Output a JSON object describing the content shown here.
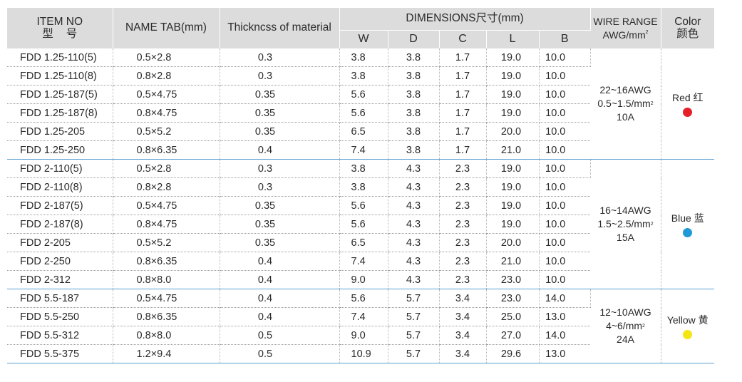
{
  "header": {
    "item_no": "ITEM NO",
    "item_no_cn": "型号",
    "name_tab": "NAME TAB(mm)",
    "thickness": "Thickncss of material",
    "dimensions": "DIMENSIONS尺寸(mm)",
    "wire_range": "WIRE RANGE",
    "wire_unit": "AWG/mm",
    "wire_unit_sup": "2",
    "color": "Color",
    "color_cn": "颜色",
    "dims": [
      "W",
      "D",
      "C",
      "L",
      "B"
    ]
  },
  "groups": [
    {
      "wire_awg": "22~16AWG",
      "wire_mm": "0.5~1.5/mm",
      "wire_mm_sup": "2",
      "wire_amp": "10A",
      "color_label": "Red 红",
      "color_hex": "#e5202a",
      "rows": [
        {
          "item": "FDD 1.25-110(5)",
          "tab": "0.5×2.8",
          "thk": "0.3",
          "w": "3.8",
          "d": "3.8",
          "c": "1.7",
          "l": "19.0",
          "b": "10.0"
        },
        {
          "item": "FDD 1.25-110(8)",
          "tab": "0.8×2.8",
          "thk": "0.3",
          "w": "3.8",
          "d": "3.8",
          "c": "1.7",
          "l": "19.0",
          "b": "10.0"
        },
        {
          "item": "FDD 1.25-187(5)",
          "tab": "0.5×4.75",
          "thk": "0.35",
          "w": "5.6",
          "d": "3.8",
          "c": "1.7",
          "l": "19.0",
          "b": "10.0"
        },
        {
          "item": "FDD 1.25-187(8)",
          "tab": "0.8×4.75",
          "thk": "0.35",
          "w": "5.6",
          "d": "3.8",
          "c": "1.7",
          "l": "19.0",
          "b": "10.0"
        },
        {
          "item": "FDD 1.25-205",
          "tab": "0.5×5.2",
          "thk": "0.35",
          "w": "6.5",
          "d": "3.8",
          "c": "1.7",
          "l": "20.0",
          "b": "10.0"
        },
        {
          "item": "FDD 1.25-250",
          "tab": "0.8×6.35",
          "thk": "0.4",
          "w": "7.4",
          "d": "3.8",
          "c": "1.7",
          "l": "21.0",
          "b": "10.0"
        }
      ]
    },
    {
      "wire_awg": "16~14AWG",
      "wire_mm": "1.5~2.5/mm",
      "wire_mm_sup": "2",
      "wire_amp": "15A",
      "color_label": "Blue 蓝",
      "color_hex": "#1f9ad6",
      "rows": [
        {
          "item": "FDD 2-110(5)",
          "tab": "0.5×2.8",
          "thk": "0.3",
          "w": "3.8",
          "d": "4.3",
          "c": "2.3",
          "l": "19.0",
          "b": "10.0"
        },
        {
          "item": "FDD 2-110(8)",
          "tab": "0.8×2.8",
          "thk": "0.3",
          "w": "3.8",
          "d": "4.3",
          "c": "2.3",
          "l": "19.0",
          "b": "10.0"
        },
        {
          "item": "FDD 2-187(5)",
          "tab": "0.5×4.75",
          "thk": "0.35",
          "w": "5.6",
          "d": "4.3",
          "c": "2.3",
          "l": "19.0",
          "b": "10.0"
        },
        {
          "item": "FDD 2-187(8)",
          "tab": "0.8×4.75",
          "thk": "0.35",
          "w": "5.6",
          "d": "4.3",
          "c": "2.3",
          "l": "19.0",
          "b": "10.0"
        },
        {
          "item": "FDD 2-205",
          "tab": "0.5×5.2",
          "thk": "0.35",
          "w": "6.5",
          "d": "4.3",
          "c": "2.3",
          "l": "20.0",
          "b": "10.0"
        },
        {
          "item": "FDD 2-250",
          "tab": "0.8×6.35",
          "thk": "0.4",
          "w": "7.4",
          "d": "4.3",
          "c": "2.3",
          "l": "21.0",
          "b": "10.0"
        },
        {
          "item": "FDD 2-312",
          "tab": "0.8×8.0",
          "thk": "0.4",
          "w": "9.0",
          "d": "4.3",
          "c": "2.3",
          "l": "23.0",
          "b": "10.0"
        }
      ]
    },
    {
      "wire_awg": "12~10AWG",
      "wire_mm": "4~6/mm",
      "wire_mm_sup": "2",
      "wire_amp": "24A",
      "color_label": "Yellow 黄",
      "color_hex": "#f4e613",
      "rows": [
        {
          "item": "FDD 5.5-187",
          "tab": "0.5×4.75",
          "thk": "0.4",
          "w": "5.6",
          "d": "5.7",
          "c": "3.4",
          "l": "23.0",
          "b": "14.0"
        },
        {
          "item": "FDD 5.5-250",
          "tab": "0.8×6.35",
          "thk": "0.4",
          "w": "7.4",
          "d": "5.7",
          "c": "3.4",
          "l": "25.0",
          "b": "13.0"
        },
        {
          "item": "FDD 5.5-312",
          "tab": "0.8×8.0",
          "thk": "0.5",
          "w": "9.0",
          "d": "5.7",
          "c": "3.4",
          "l": "27.0",
          "b": "14.0"
        },
        {
          "item": "FDD 5.5-375",
          "tab": "1.2×9.4",
          "thk": "0.5",
          "w": "10.9",
          "d": "5.7",
          "c": "3.4",
          "l": "29.6",
          "b": "13.0"
        }
      ]
    }
  ]
}
